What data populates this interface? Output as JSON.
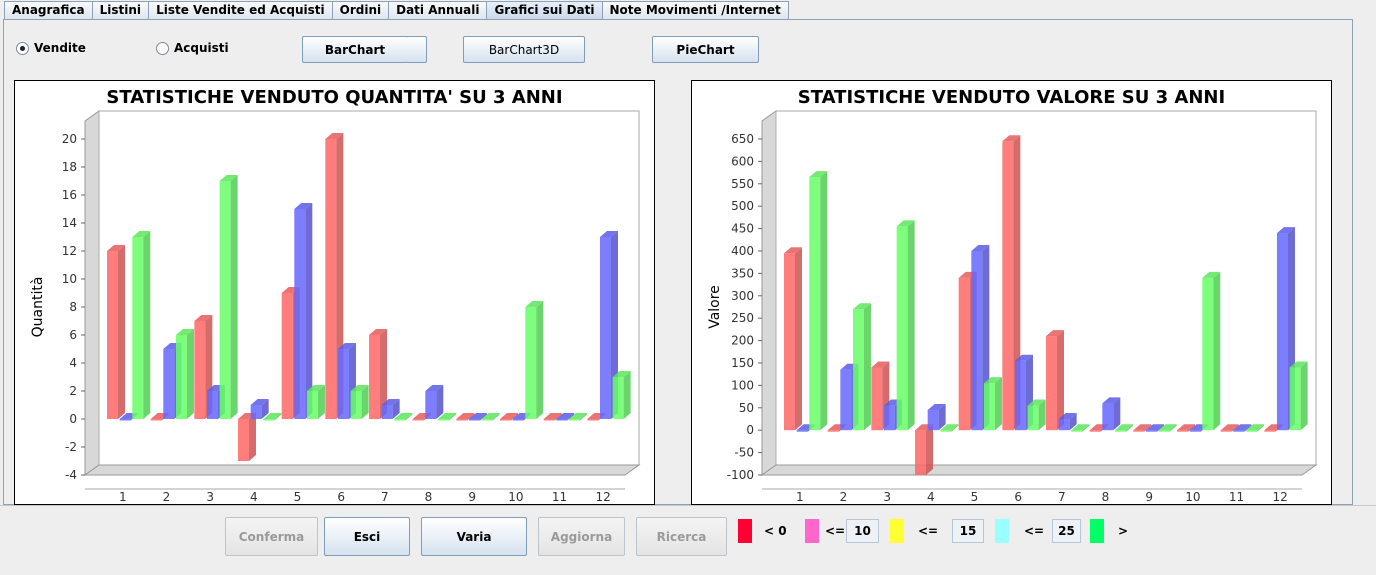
{
  "tabs": [
    "Anagrafica",
    "Listini",
    "Liste Vendite ed Acquisti",
    "Ordini",
    "Dati Annuali",
    "Grafici sui Dati",
    "Note Movimenti /Internet"
  ],
  "active_tab": 5,
  "radios": {
    "vendite": "Vendite",
    "acquisti": "Acquisti",
    "selected": "vendite"
  },
  "chart_buttons": {
    "barchart": "BarChart",
    "barchart3d": "BarChart3D",
    "piechart": "PieChart"
  },
  "bottom_buttons": {
    "conferma": "Conferma",
    "esci": "Esci",
    "varia": "Varia",
    "aggiorna": "Aggiorna",
    "ricerca": "Ricerca"
  },
  "legend": {
    "items": [
      {
        "color": "#ff0033",
        "label": "< 0"
      },
      {
        "color": "#ff66cc",
        "label": "<=",
        "box": "10"
      },
      {
        "color": "#ffff33",
        "label": "<=",
        "box": "15"
      },
      {
        "color": "#99ffff",
        "label": "<=",
        "box": "25"
      },
      {
        "color": "#00ff66",
        "label": ">"
      }
    ]
  },
  "colors": {
    "series1": "#ff6666",
    "series2": "#6666ff",
    "series3": "#66ff66"
  },
  "chart_data": [
    {
      "type": "bar",
      "title": "STATISTICHE VENDUTO QUANTITA' SU 3 ANNI",
      "ylabel": "Quantità",
      "xlabel": "",
      "categories": [
        "1",
        "2",
        "3",
        "4",
        "5",
        "6",
        "7",
        "8",
        "9",
        "10",
        "11",
        "12"
      ],
      "ylim": [
        -4,
        20
      ],
      "yticks": [
        -4,
        -2,
        0,
        2,
        4,
        6,
        8,
        10,
        12,
        14,
        16,
        18,
        20
      ],
      "series": [
        {
          "values": [
            12,
            0,
            7,
            -3,
            9,
            20,
            6,
            0,
            0,
            0,
            0,
            0
          ]
        },
        {
          "values": [
            0,
            5,
            2,
            1,
            15,
            5,
            1,
            2,
            0,
            0,
            0,
            13
          ]
        },
        {
          "values": [
            13,
            6,
            17,
            0,
            2,
            2,
            0,
            0,
            0,
            8,
            0,
            3
          ]
        }
      ]
    },
    {
      "type": "bar",
      "title": "STATISTICHE VENDUTO VALORE SU 3 ANNI",
      "ylabel": "Valore",
      "xlabel": "",
      "categories": [
        "1",
        "2",
        "3",
        "4",
        "5",
        "6",
        "7",
        "8",
        "9",
        "10",
        "11",
        "12"
      ],
      "ylim": [
        -100,
        650
      ],
      "yticks": [
        -100,
        -50,
        0,
        50,
        100,
        150,
        200,
        250,
        300,
        350,
        400,
        450,
        500,
        550,
        600,
        650
      ],
      "series": [
        {
          "values": [
            395,
            0,
            140,
            -100,
            340,
            645,
            210,
            0,
            0,
            0,
            0,
            0
          ]
        },
        {
          "values": [
            0,
            135,
            55,
            45,
            400,
            155,
            25,
            60,
            0,
            0,
            0,
            440
          ]
        },
        {
          "values": [
            565,
            270,
            455,
            0,
            105,
            55,
            0,
            0,
            0,
            340,
            0,
            140
          ]
        }
      ]
    }
  ]
}
